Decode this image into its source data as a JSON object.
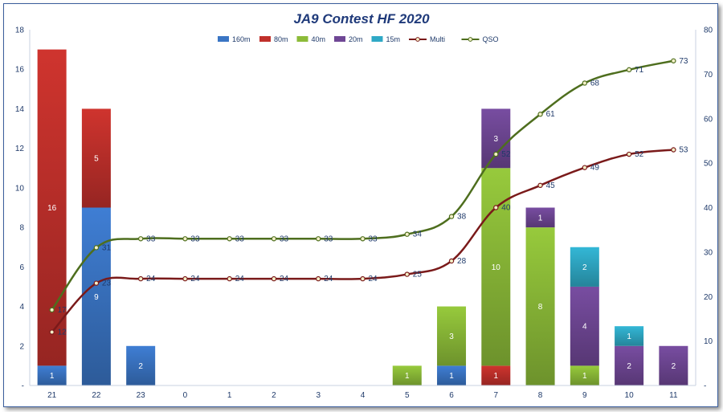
{
  "chart_data": {
    "type": "bar",
    "title": "JA9 Contest HF 2020",
    "categories": [
      "21",
      "22",
      "23",
      "0",
      "1",
      "2",
      "3",
      "4",
      "5",
      "6",
      "7",
      "8",
      "9",
      "10",
      "11"
    ],
    "ylim": [
      0,
      18
    ],
    "y_ticks": [
      "-",
      "2",
      "4",
      "6",
      "8",
      "10",
      "12",
      "14",
      "16",
      "18"
    ],
    "y2lim": [
      0,
      80
    ],
    "y2_ticks": [
      "-",
      "10",
      "20",
      "30",
      "40",
      "50",
      "60",
      "70",
      "80"
    ],
    "stacked": true,
    "legend_position": "top",
    "grid": false,
    "series": [
      {
        "name": "160m",
        "color": "#3a75c4",
        "values": [
          1,
          9,
          2,
          0,
          0,
          0,
          0,
          0,
          0,
          1,
          0,
          0,
          0,
          0,
          0
        ]
      },
      {
        "name": "80m",
        "color": "#c0302b",
        "values": [
          16,
          5,
          0,
          0,
          0,
          0,
          0,
          0,
          0,
          0,
          1,
          0,
          0,
          0,
          0
        ]
      },
      {
        "name": "40m",
        "color": "#8cbb38",
        "values": [
          0,
          0,
          0,
          0,
          0,
          0,
          0,
          0,
          1,
          3,
          10,
          8,
          1,
          0,
          0
        ]
      },
      {
        "name": "20m",
        "color": "#6f4795",
        "values": [
          0,
          0,
          0,
          0,
          0,
          0,
          0,
          0,
          0,
          0,
          3,
          1,
          4,
          2,
          2
        ]
      },
      {
        "name": "15m",
        "color": "#2fa9c6",
        "values": [
          0,
          0,
          0,
          0,
          0,
          0,
          0,
          0,
          0,
          0,
          0,
          0,
          2,
          1,
          0
        ]
      }
    ],
    "lines": [
      {
        "name": "Multi",
        "axis": "right",
        "color": "#7a1a1a",
        "values": [
          12,
          23,
          24,
          24,
          24,
          24,
          24,
          24,
          25,
          28,
          40,
          45,
          49,
          52,
          53
        ]
      },
      {
        "name": "QSO",
        "axis": "right",
        "color": "#4e6e1e",
        "values": [
          17,
          31,
          33,
          33,
          33,
          33,
          33,
          33,
          34,
          38,
          52,
          61,
          68,
          71,
          73
        ]
      }
    ]
  }
}
